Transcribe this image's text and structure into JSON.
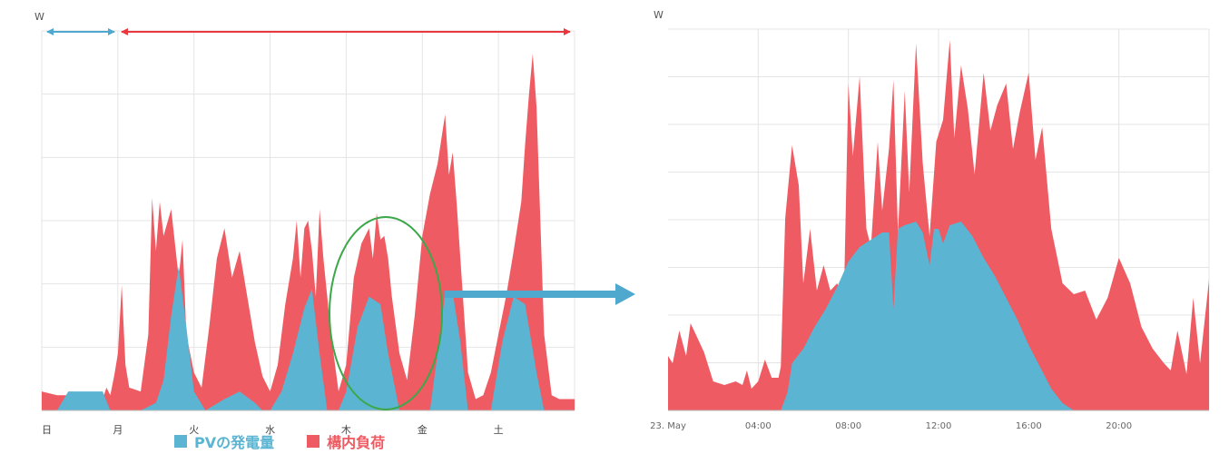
{
  "colors": {
    "pv": "#5ab4d2",
    "load": "#ef5b62",
    "grid": "#e4e4e4",
    "annot_blue": "#4fa9cf",
    "annot_red": "#e8383d",
    "highlight": "#3ca84a"
  },
  "legend": {
    "pv_label": "PVの発電量",
    "load_label": "構内負荷"
  },
  "chart_data": [
    {
      "type": "area",
      "title": "",
      "unit_label": "W",
      "categories": [
        "日",
        "月",
        "火",
        "水",
        "木",
        "金",
        "土"
      ],
      "grid": true,
      "series": [
        {
          "name": "PVの発電量",
          "color": "#5ab4d2",
          "x": [
            0,
            0.2,
            0.35,
            0.5,
            0.8,
            0.9,
            1.0,
            1.05,
            1.2,
            1.3,
            1.5,
            1.6,
            1.7,
            1.8,
            1.9,
            2.0,
            2.15,
            2.4,
            2.6,
            2.8,
            2.9,
            3.0,
            3.15,
            3.3,
            3.45,
            3.55,
            3.65,
            3.75,
            3.9,
            4.0,
            4.15,
            4.3,
            4.45,
            4.55,
            4.7,
            4.85,
            5.0,
            5.1,
            5.2,
            5.3,
            5.4,
            5.5,
            5.6,
            5.75,
            5.9,
            6.05,
            6.2,
            6.35,
            6.5,
            6.6,
            7.0
          ],
          "values": [
            0,
            0,
            0.5,
            0.5,
            0.5,
            0,
            0,
            0,
            0,
            0,
            0.2,
            0.8,
            2.5,
            3.8,
            2.2,
            0.5,
            0,
            0.3,
            0.5,
            0.2,
            0,
            0,
            0.5,
            1.5,
            2.7,
            3.2,
            1.5,
            0,
            0,
            0.5,
            2.2,
            3.0,
            2.8,
            1.5,
            0,
            0,
            0,
            0,
            1.5,
            3.1,
            3.1,
            1.8,
            0,
            0,
            0,
            1.8,
            3.0,
            2.8,
            1.0,
            0,
            0
          ]
        },
        {
          "name": "構内負荷",
          "color": "#ef5b62",
          "x": [
            0,
            0.2,
            0.5,
            0.8,
            0.85,
            0.9,
            0.95,
            1.0,
            1.05,
            1.1,
            1.15,
            1.3,
            1.4,
            1.45,
            1.5,
            1.55,
            1.6,
            1.7,
            1.8,
            1.85,
            1.9,
            2.0,
            2.1,
            2.2,
            2.3,
            2.4,
            2.5,
            2.6,
            2.7,
            2.8,
            2.9,
            3.0,
            3.1,
            3.2,
            3.3,
            3.35,
            3.4,
            3.45,
            3.5,
            3.55,
            3.6,
            3.65,
            3.7,
            3.8,
            3.9,
            4.0,
            4.1,
            4.2,
            4.3,
            4.35,
            4.4,
            4.45,
            4.5,
            4.55,
            4.6,
            4.7,
            4.8,
            4.9,
            5.0,
            5.1,
            5.2,
            5.3,
            5.35,
            5.4,
            5.45,
            5.5,
            5.55,
            5.6,
            5.7,
            5.8,
            5.9,
            6.0,
            6.1,
            6.2,
            6.3,
            6.35,
            6.4,
            6.45,
            6.5,
            6.55,
            6.6,
            6.7,
            6.8,
            7.0
          ],
          "values": [
            0.5,
            0.4,
            0.4,
            0.3,
            0.6,
            0.4,
            0.9,
            1.5,
            3.3,
            1.2,
            0.6,
            0.5,
            2.0,
            5.6,
            4.2,
            5.5,
            4.6,
            5.3,
            3.5,
            4.5,
            2.0,
            1.0,
            0.6,
            2.2,
            4.0,
            4.8,
            3.5,
            4.2,
            3.0,
            1.8,
            0.9,
            0.5,
            1.2,
            2.8,
            4.0,
            5.0,
            3.5,
            4.8,
            5.0,
            4.2,
            3.0,
            5.3,
            4.0,
            2.0,
            0.5,
            1.2,
            3.5,
            4.4,
            4.8,
            4.0,
            5.2,
            4.5,
            4.6,
            4.0,
            3.0,
            1.5,
            0.8,
            2.5,
            4.6,
            5.7,
            6.5,
            7.8,
            6.2,
            6.8,
            5.5,
            4.0,
            2.5,
            1.0,
            0.3,
            0.4,
            1.0,
            2.0,
            3.0,
            4.2,
            5.5,
            7.0,
            8.3,
            9.4,
            8.0,
            5.0,
            2.0,
            0.4,
            0.3,
            0.3
          ]
        }
      ]
    },
    {
      "type": "area",
      "title": "",
      "unit_label": "W",
      "x_ticks": [
        "23. May",
        "04:00",
        "08:00",
        "12:00",
        "16:00",
        "20:00"
      ],
      "grid": true,
      "series": [
        {
          "name": "PVの発電量",
          "color": "#5ab4d2",
          "x": [
            0,
            4.5,
            5.0,
            5.3,
            5.5,
            6.0,
            6.5,
            7.0,
            7.5,
            8.0,
            8.5,
            9.0,
            9.5,
            9.8,
            10.0,
            10.2,
            10.5,
            11.0,
            11.3,
            11.6,
            11.8,
            12.0,
            12.2,
            12.5,
            13.0,
            13.5,
            14.0,
            14.5,
            15.0,
            15.5,
            16.0,
            16.5,
            17.0,
            17.5,
            18.0,
            18.3,
            24.0
          ],
          "values": [
            0,
            0,
            0,
            0.5,
            1.3,
            1.7,
            2.3,
            2.8,
            3.4,
            4.1,
            4.5,
            4.7,
            4.9,
            4.9,
            2.8,
            5.0,
            5.1,
            5.2,
            4.9,
            4.0,
            5.0,
            5.0,
            4.6,
            5.1,
            5.2,
            4.8,
            4.2,
            3.7,
            3.1,
            2.5,
            1.8,
            1.2,
            0.6,
            0.2,
            0,
            0,
            0
          ]
        },
        {
          "name": "構内負荷",
          "color": "#ef5b62",
          "x": [
            0,
            0.2,
            0.5,
            0.8,
            1.0,
            1.3,
            1.6,
            2.0,
            2.5,
            3.0,
            3.3,
            3.5,
            3.7,
            4.0,
            4.3,
            4.6,
            4.9,
            5.0,
            5.2,
            5.5,
            5.8,
            6.0,
            6.3,
            6.6,
            6.9,
            7.2,
            7.5,
            7.8,
            8.0,
            8.2,
            8.5,
            8.8,
            9.0,
            9.3,
            9.5,
            9.8,
            10.0,
            10.2,
            10.5,
            10.7,
            11.0,
            11.3,
            11.6,
            11.9,
            12.2,
            12.5,
            12.7,
            13.0,
            13.3,
            13.6,
            14.0,
            14.3,
            14.6,
            15.0,
            15.3,
            15.6,
            16.0,
            16.3,
            16.6,
            17.0,
            17.5,
            18.0,
            18.5,
            19.0,
            19.5,
            20.0,
            20.5,
            21.0,
            21.5,
            22.0,
            22.3,
            22.6,
            23.0,
            23.3,
            23.6,
            24.0
          ],
          "values": [
            1.5,
            1.3,
            2.2,
            1.5,
            2.4,
            2.0,
            1.6,
            0.8,
            0.7,
            0.8,
            0.7,
            1.1,
            0.6,
            0.8,
            1.4,
            0.9,
            0.9,
            1.2,
            5.3,
            7.3,
            6.2,
            3.5,
            5.0,
            3.3,
            4.0,
            3.3,
            3.5,
            3.0,
            9.0,
            7.0,
            9.2,
            5.0,
            4.5,
            7.4,
            5.5,
            7.2,
            9.1,
            4.9,
            8.8,
            6.0,
            10.1,
            6.8,
            4.8,
            7.4,
            8.0,
            10.2,
            7.5,
            9.5,
            8.3,
            6.5,
            9.3,
            7.7,
            8.4,
            9.0,
            7.2,
            8.2,
            9.3,
            6.9,
            7.8,
            5.0,
            3.5,
            3.2,
            3.3,
            2.5,
            3.1,
            4.2,
            3.5,
            2.3,
            1.7,
            1.3,
            1.1,
            2.2,
            1.0,
            3.1,
            1.3,
            3.6
          ]
        }
      ]
    }
  ]
}
